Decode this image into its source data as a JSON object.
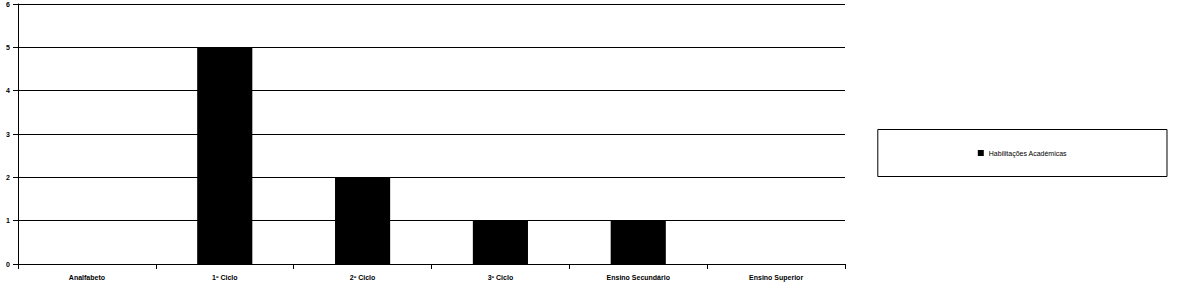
{
  "chart_data": {
    "type": "bar",
    "categories": [
      "Analfabeto",
      "1º Ciclo",
      "2º Ciclo",
      "3º Ciclo",
      "Ensino Secundário",
      "Ensino Superior"
    ],
    "series": [
      {
        "name": "Habilitações Académicas",
        "color": "#000000",
        "values": [
          0,
          5,
          2,
          1,
          1,
          0
        ]
      }
    ],
    "ylim": [
      0,
      6
    ],
    "yticks": [
      0,
      1,
      2,
      3,
      4,
      5,
      6
    ],
    "grid": true,
    "legend": "right"
  }
}
